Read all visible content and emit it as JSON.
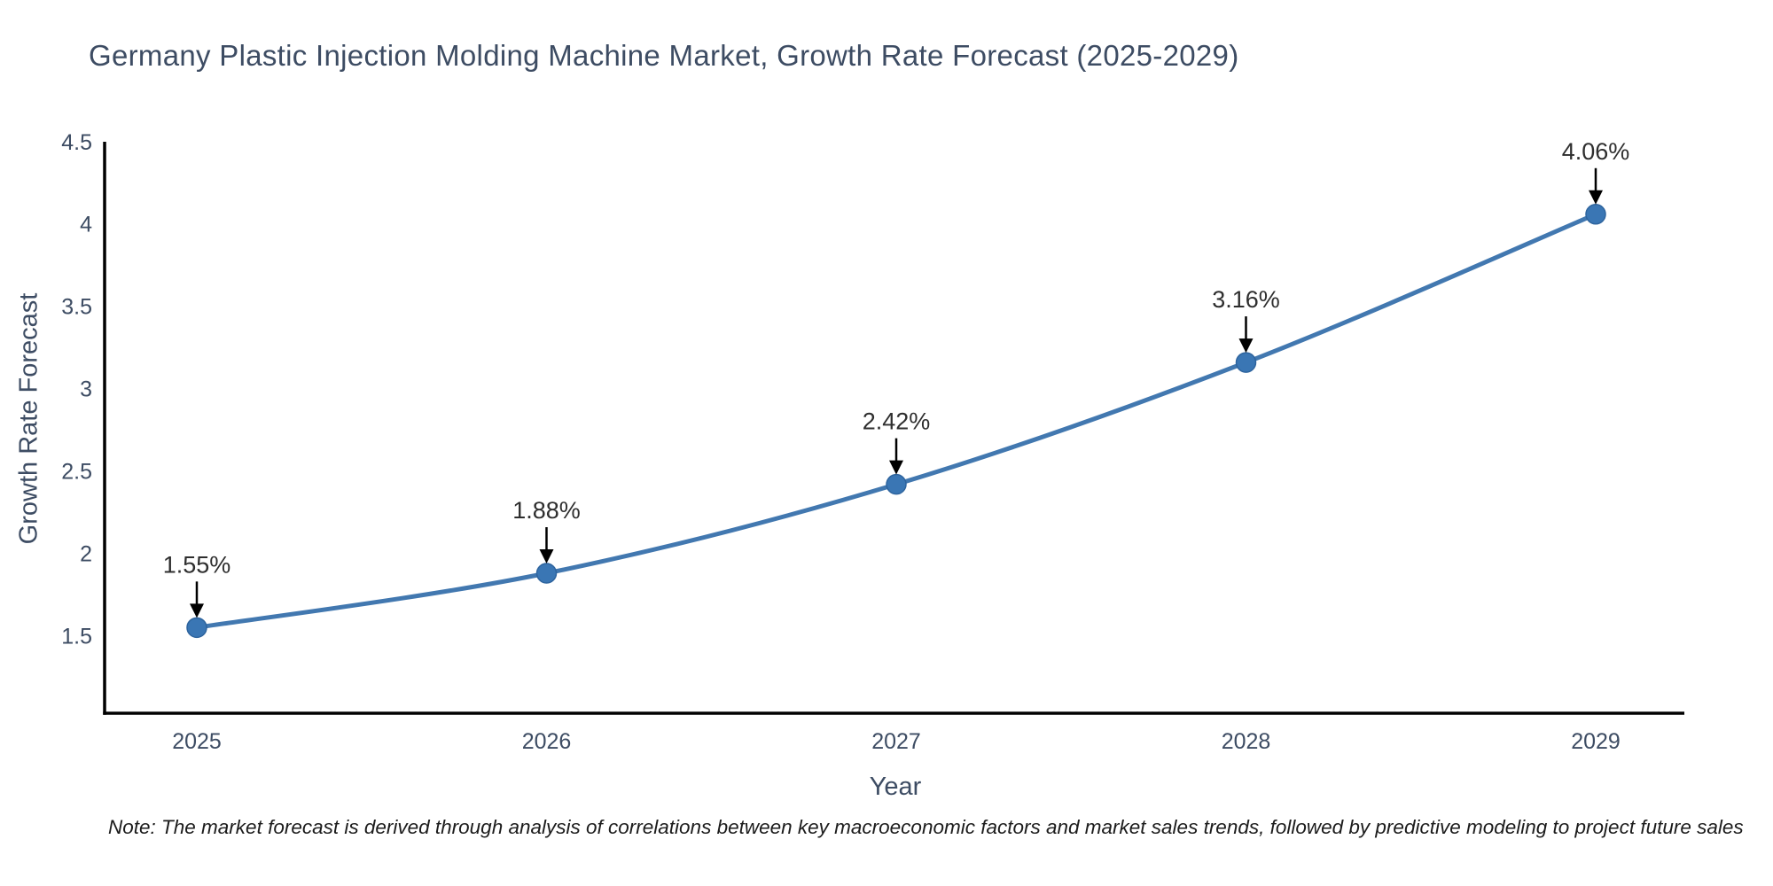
{
  "note": "Note: The market forecast is derived through analysis of correlations between key macroeconomic factors and market sales trends, followed by predictive modeling to project future sales",
  "chart_data": {
    "type": "line",
    "title": "Germany Plastic Injection Molding Machine Market, Growth Rate Forecast (2025-2029)",
    "xlabel": "Year",
    "ylabel": "Growth Rate Forecast",
    "categories": [
      "2025",
      "2026",
      "2027",
      "2028",
      "2029"
    ],
    "series": [
      {
        "name": "Growth Rate Forecast",
        "values": [
          1.55,
          1.88,
          2.42,
          3.16,
          4.06
        ],
        "point_labels": [
          "1.55%",
          "1.88%",
          "2.42%",
          "3.16%",
          "4.06%"
        ]
      }
    ],
    "ylim": [
      1.03,
      4.5
    ],
    "yticks": [
      1.5,
      2,
      2.5,
      3,
      3.5,
      4,
      4.5
    ],
    "grid": false,
    "legend": "none",
    "line_shape": "spline",
    "colors": {
      "line": "#4278b0",
      "marker_fill": "#3a76b4",
      "marker_edge": "#2e649e",
      "axis": "#000000",
      "tick_label": "#3d4c63",
      "annotation_text": "#2e2e2e",
      "annotation_arrow": "#000000",
      "background": "#ffffff"
    }
  }
}
